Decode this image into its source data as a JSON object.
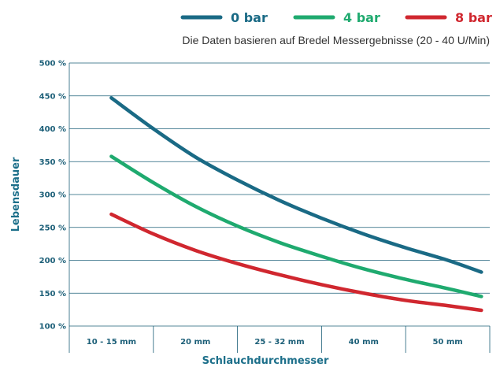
{
  "chart_data": {
    "type": "line",
    "subtitle": "Die Daten basieren auf Bredel Messergebnisse (20 - 40 U/Min)",
    "xlabel": "Schlauchdurchmesser",
    "ylabel": "Lebensdauer",
    "categories": [
      "10 - 15 mm",
      "20 mm",
      "25 - 32 mm",
      "40 mm",
      "50 mm"
    ],
    "y_ticks": [
      "100 %",
      "150 %",
      "200 %",
      "250 %",
      "300 %",
      "350 %",
      "400 %",
      "450 %",
      "500 %"
    ],
    "ylim": [
      100,
      500
    ],
    "legend_position": "top-right",
    "grid": true,
    "series": [
      {
        "name": "0 bar",
        "color": "#1a6a85",
        "points": [
          [
            0,
            447
          ],
          [
            0.5,
            400
          ],
          [
            1,
            357
          ],
          [
            1.5,
            322
          ],
          [
            2,
            291
          ],
          [
            2.5,
            264
          ],
          [
            3,
            240
          ],
          [
            3.5,
            219
          ],
          [
            4,
            200
          ],
          [
            4.4,
            182
          ]
        ]
      },
      {
        "name": "4 bar",
        "color": "#1faa6f",
        "points": [
          [
            0,
            358
          ],
          [
            0.5,
            318
          ],
          [
            1,
            282
          ],
          [
            1.5,
            252
          ],
          [
            2,
            227
          ],
          [
            2.5,
            206
          ],
          [
            3,
            187
          ],
          [
            3.5,
            171
          ],
          [
            4,
            157
          ],
          [
            4.4,
            145
          ]
        ]
      },
      {
        "name": "8 bar",
        "color": "#d0272f",
        "points": [
          [
            0,
            270
          ],
          [
            0.5,
            240
          ],
          [
            1,
            215
          ],
          [
            1.5,
            195
          ],
          [
            2,
            178
          ],
          [
            2.5,
            163
          ],
          [
            3,
            150
          ],
          [
            3.5,
            139
          ],
          [
            4,
            131
          ],
          [
            4.4,
            124
          ]
        ]
      }
    ]
  }
}
